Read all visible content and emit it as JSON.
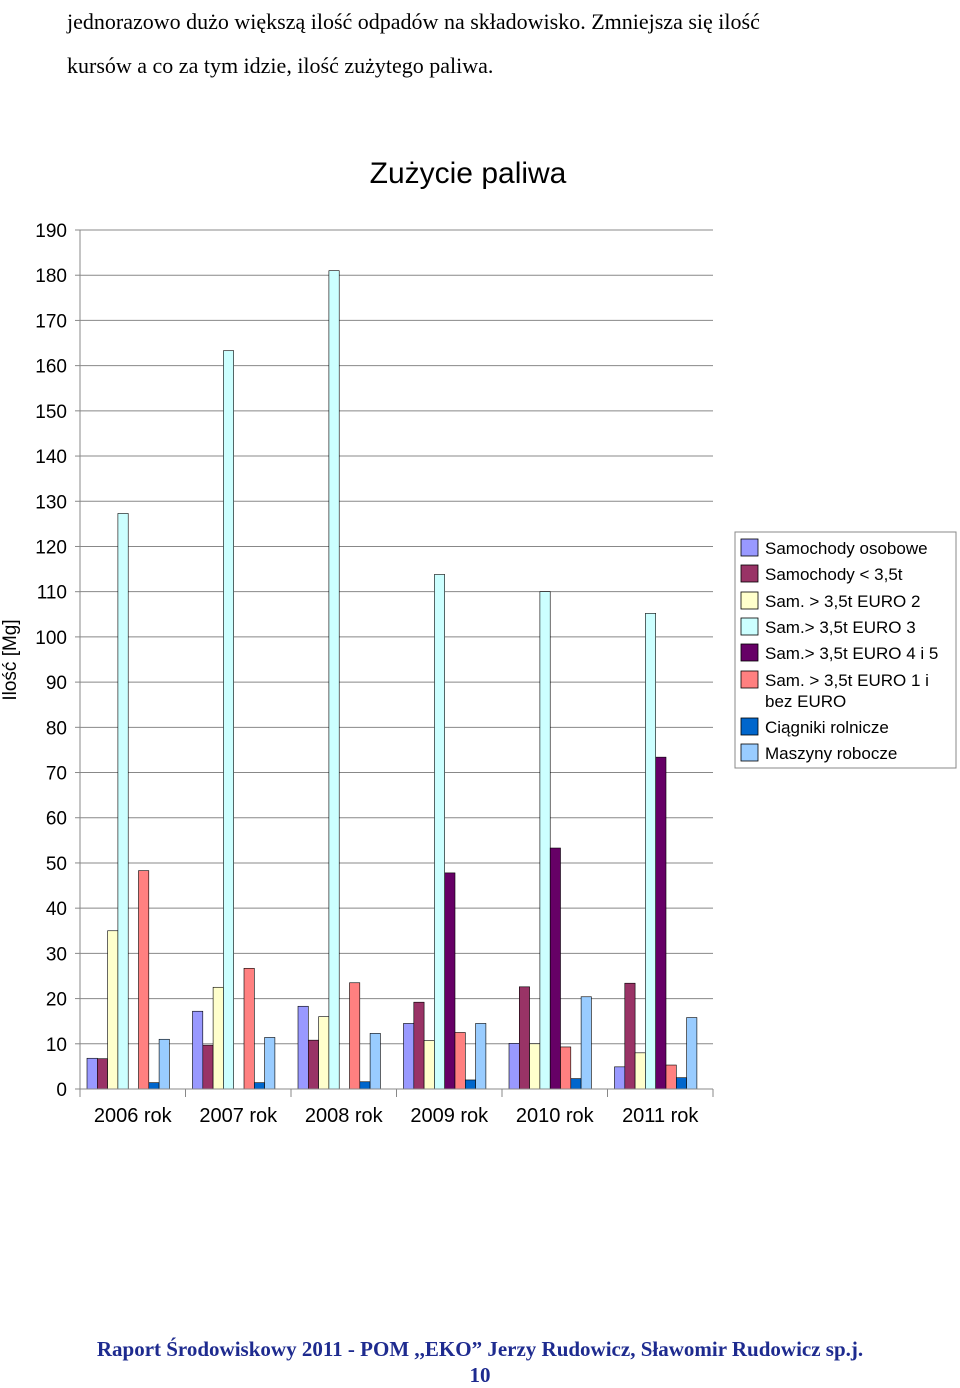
{
  "document": {
    "intro_lines": [
      "jednorazowo dużo większą ilość odpadów na składowisko. Zmniejsza się ilość",
      "kursów a co za tym idzie, ilość zużytego paliwa."
    ],
    "footer": "Raport Środowiskowy 2011 - POM ,,EKO” Jerzy Rudowicz, Sławomir Rudowicz sp.j.",
    "page_number": "10"
  },
  "chart_data": {
    "type": "bar",
    "title": "Zużycie paliwa",
    "xlabel": "",
    "ylabel": "Ilość [Mg]",
    "ylim": [
      0,
      190
    ],
    "ytick_step": 10,
    "grid": true,
    "legend_position": "right",
    "categories": [
      "2006 rok",
      "2007 rok",
      "2008 rok",
      "2009 rok",
      "2010 rok",
      "2011 rok"
    ],
    "series": [
      {
        "name": "Samochody osobowe",
        "color": "#9999ff",
        "values": [
          6.8,
          17.2,
          18.3,
          14.5,
          10.1,
          4.9
        ]
      },
      {
        "name": "Samochody < 3,5t",
        "color": "#993366",
        "values": [
          6.7,
          9.7,
          10.8,
          19.2,
          22.6,
          23.4
        ]
      },
      {
        "name": "Sam. > 3,5t EURO 2",
        "color": "#ffffcc",
        "values": [
          35.0,
          22.5,
          16.0,
          10.7,
          10.0,
          8.0
        ]
      },
      {
        "name": "Sam.> 3,5t EURO 3",
        "color": "#ccffff",
        "values": [
          127.3,
          163.3,
          181.0,
          113.8,
          110.0,
          105.2
        ]
      },
      {
        "name": "Sam.> 3,5t EURO 4 i 5",
        "color": "#660066",
        "values": [
          0,
          0,
          0,
          47.8,
          53.3,
          73.4
        ]
      },
      {
        "name": "Sam. > 3,5t EURO 1 i bez EURO",
        "color": "#ff8080",
        "values": [
          48.3,
          26.7,
          23.5,
          12.5,
          9.3,
          5.3
        ]
      },
      {
        "name": "Ciągniki rolnicze",
        "color": "#0066cc",
        "values": [
          1.4,
          1.4,
          1.6,
          2.0,
          2.3,
          2.5
        ]
      },
      {
        "name": "Maszyny robocze",
        "color": "#99ccff",
        "values": [
          11.0,
          11.4,
          12.3,
          14.5,
          20.4,
          15.8
        ]
      }
    ]
  }
}
